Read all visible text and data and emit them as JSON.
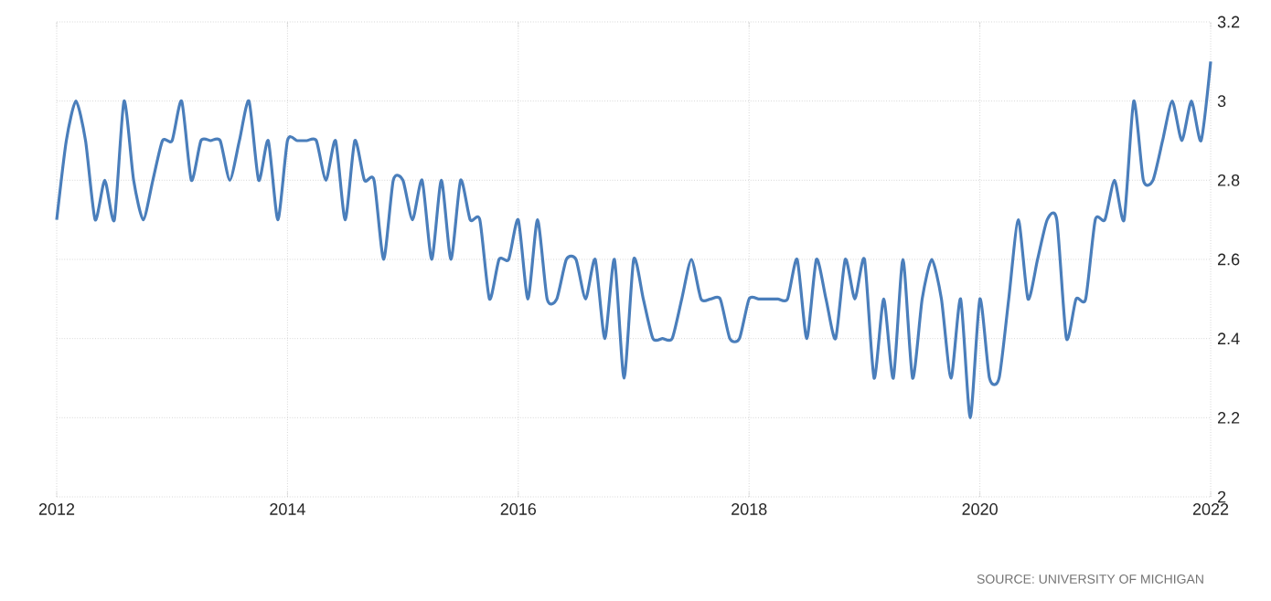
{
  "chart_data": {
    "type": "line",
    "x": [
      "2012-01",
      "2012-02",
      "2012-03",
      "2012-04",
      "2012-05",
      "2012-06",
      "2012-07",
      "2012-08",
      "2012-09",
      "2012-10",
      "2012-11",
      "2012-12",
      "2013-01",
      "2013-02",
      "2013-03",
      "2013-04",
      "2013-05",
      "2013-06",
      "2013-07",
      "2013-08",
      "2013-09",
      "2013-10",
      "2013-11",
      "2013-12",
      "2014-01",
      "2014-02",
      "2014-03",
      "2014-04",
      "2014-05",
      "2014-06",
      "2014-07",
      "2014-08",
      "2014-09",
      "2014-10",
      "2014-11",
      "2014-12",
      "2015-01",
      "2015-02",
      "2015-03",
      "2015-04",
      "2015-05",
      "2015-06",
      "2015-07",
      "2015-08",
      "2015-09",
      "2015-10",
      "2015-11",
      "2015-12",
      "2016-01",
      "2016-02",
      "2016-03",
      "2016-04",
      "2016-05",
      "2016-06",
      "2016-07",
      "2016-08",
      "2016-09",
      "2016-10",
      "2016-11",
      "2016-12",
      "2017-01",
      "2017-02",
      "2017-03",
      "2017-04",
      "2017-05",
      "2017-06",
      "2017-07",
      "2017-08",
      "2017-09",
      "2017-10",
      "2017-11",
      "2017-12",
      "2018-01",
      "2018-02",
      "2018-03",
      "2018-04",
      "2018-05",
      "2018-06",
      "2018-07",
      "2018-08",
      "2018-09",
      "2018-10",
      "2018-11",
      "2018-12",
      "2019-01",
      "2019-02",
      "2019-03",
      "2019-04",
      "2019-05",
      "2019-06",
      "2019-07",
      "2019-08",
      "2019-09",
      "2019-10",
      "2019-11",
      "2019-12",
      "2020-01",
      "2020-02",
      "2020-03",
      "2020-04",
      "2020-05",
      "2020-06",
      "2020-07",
      "2020-08",
      "2020-09",
      "2020-10",
      "2020-11",
      "2020-12",
      "2021-01",
      "2021-02",
      "2021-03",
      "2021-04",
      "2021-05",
      "2021-06",
      "2021-07",
      "2021-08",
      "2021-09",
      "2021-10",
      "2021-11",
      "2021-12",
      "2022-01"
    ],
    "series": [
      {
        "color": "#4a7ebb",
        "values": [
          2.7,
          2.9,
          3.0,
          2.9,
          2.7,
          2.8,
          2.7,
          3.0,
          2.8,
          2.7,
          2.8,
          2.9,
          2.9,
          3.0,
          2.8,
          2.9,
          2.9,
          2.9,
          2.8,
          2.9,
          3.0,
          2.8,
          2.9,
          2.7,
          2.9,
          2.9,
          2.9,
          2.9,
          2.8,
          2.9,
          2.7,
          2.9,
          2.8,
          2.8,
          2.6,
          2.8,
          2.8,
          2.7,
          2.8,
          2.6,
          2.8,
          2.6,
          2.8,
          2.7,
          2.7,
          2.5,
          2.6,
          2.6,
          2.7,
          2.5,
          2.7,
          2.5,
          2.5,
          2.6,
          2.6,
          2.5,
          2.6,
          2.4,
          2.6,
          2.3,
          2.6,
          2.5,
          2.4,
          2.4,
          2.4,
          2.5,
          2.6,
          2.5,
          2.5,
          2.5,
          2.4,
          2.4,
          2.5,
          2.5,
          2.5,
          2.5,
          2.5,
          2.6,
          2.4,
          2.6,
          2.5,
          2.4,
          2.6,
          2.5,
          2.6,
          2.3,
          2.5,
          2.3,
          2.6,
          2.3,
          2.5,
          2.6,
          2.5,
          2.3,
          2.5,
          2.2,
          2.5,
          2.3,
          2.3,
          2.5,
          2.7,
          2.5,
          2.6,
          2.7,
          2.7,
          2.4,
          2.5,
          2.5,
          2.7,
          2.7,
          2.8,
          2.7,
          3.0,
          2.8,
          2.8,
          2.9,
          3.0,
          2.9,
          3.0,
          2.9,
          3.1
        ]
      }
    ],
    "xlim": [
      "2012-01",
      "2022-01"
    ],
    "xticks": [
      "2012",
      "2014",
      "2016",
      "2018",
      "2020",
      "2022"
    ],
    "ylim": [
      2,
      3.2
    ],
    "yticks": [
      2,
      2.2,
      2.4,
      2.6,
      2.8,
      3,
      3.2
    ],
    "grid": true,
    "annotations": [
      "SOURCE: UNIVERSITY OF MICHIGAN"
    ]
  }
}
